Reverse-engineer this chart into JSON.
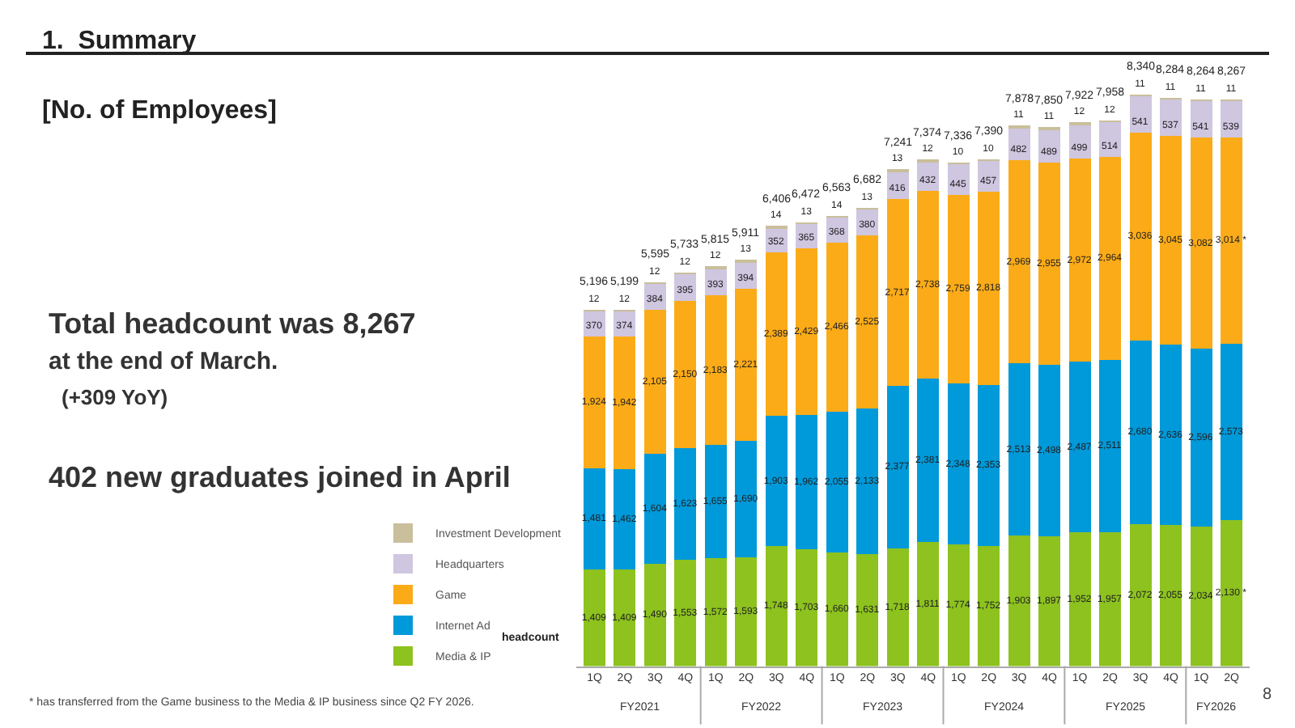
{
  "chart_data": {
    "type": "bar",
    "stacked": true,
    "title": "1.  Summary",
    "subtitle": "[No. of Employees]",
    "ylabel": "headcount",
    "legend": "left",
    "categories": [
      "1Q",
      "2Q",
      "3Q",
      "4Q",
      "1Q",
      "2Q",
      "3Q",
      "4Q",
      "1Q",
      "2Q",
      "3Q",
      "4Q",
      "1Q",
      "2Q",
      "3Q",
      "4Q",
      "1Q",
      "2Q",
      "3Q",
      "4Q",
      "1Q",
      "2Q"
    ],
    "series": [
      {
        "name": "Media & IP",
        "color": "#8dc21f",
        "values": [
          1409,
          1409,
          1490,
          1553,
          1572,
          1593,
          1748,
          1703,
          1660,
          1631,
          1718,
          1811,
          1774,
          1752,
          1903,
          1897,
          1952,
          1957,
          2072,
          2055,
          2034,
          2130
        ],
        "value_labels": [
          "1,409",
          "1,409",
          "1,490",
          "1,553",
          "1,572",
          "1,593",
          "1,748",
          "1,703",
          "1,660",
          "1,631",
          "1,718",
          "1,811",
          "1,774",
          "1,752",
          "1,903",
          "1,897",
          "1,952",
          "1,957",
          "2,072",
          "2,055",
          "2,034",
          "2,130 *"
        ]
      },
      {
        "name": "Internet Ad",
        "color": "#0099d9",
        "values": [
          1481,
          1462,
          1604,
          1623,
          1655,
          1690,
          1903,
          1962,
          2055,
          2133,
          2377,
          2381,
          2348,
          2353,
          2513,
          2498,
          2487,
          2511,
          2680,
          2636,
          2596,
          2573
        ],
        "value_labels": [
          "1,481",
          "1,462",
          "1,604",
          "1,623",
          "1,655",
          "1,690",
          "1,903",
          "1,962",
          "2,055",
          "2,133",
          "2,377",
          "2,381",
          "2,348",
          "2,353",
          "2,513",
          "2,498",
          "2,487",
          "2,511",
          "2,680",
          "2,636",
          "2,596",
          "2,573"
        ]
      },
      {
        "name": "Game",
        "color": "#fbab18",
        "values": [
          1924,
          1942,
          2105,
          2150,
          2183,
          2221,
          2389,
          2429,
          2466,
          2525,
          2717,
          2738,
          2759,
          2818,
          2969,
          2955,
          2972,
          2964,
          3036,
          3045,
          3082,
          3014
        ],
        "value_labels": [
          "1,924",
          "1,942",
          "2,105",
          "2,150",
          "2,183",
          "2,221",
          "2,389",
          "2,429",
          "2,466",
          "2,525",
          "2,717",
          "2,738",
          "2,759",
          "2,818",
          "2,969",
          "2,955",
          "2,972",
          "2,964",
          "3,036",
          "3,045",
          "3,082",
          "3,014 *"
        ]
      },
      {
        "name": "Headquarters",
        "color": "#cfc6e0",
        "values": [
          370,
          374,
          384,
          395,
          393,
          394,
          352,
          365,
          368,
          380,
          416,
          432,
          445,
          457,
          482,
          489,
          499,
          514,
          541,
          537,
          541,
          539
        ],
        "value_labels": [
          "370",
          "374",
          "384",
          "395",
          "393",
          "394",
          "352",
          "365",
          "368",
          "380",
          "416",
          "432",
          "445",
          "457",
          "482",
          "489",
          "499",
          "514",
          "541",
          "537",
          "541",
          "539"
        ]
      },
      {
        "name": "Investment Development",
        "color": "#c9bf9b",
        "values": [
          12,
          12,
          12,
          12,
          12,
          13,
          14,
          13,
          14,
          13,
          13,
          12,
          10,
          10,
          11,
          11,
          12,
          12,
          11,
          11,
          11,
          11
        ],
        "value_labels": [
          "12",
          "12",
          "12",
          "12",
          "12",
          "13",
          "14",
          "13",
          "14",
          "13",
          "13",
          "12",
          "10",
          "10",
          "11",
          "11",
          "12",
          "12",
          "11",
          "11",
          "11",
          "11"
        ]
      }
    ],
    "totals": [
      "5,196",
      "5,199",
      "5,595",
      "5,733",
      "5,815",
      "5,911",
      "6,406",
      "6,472",
      "6,563",
      "6,682",
      "7,241",
      "7,374",
      "7,336",
      "7,390",
      "7,878",
      "7,850",
      "7,922",
      "7,958",
      "8,340",
      "8,284",
      "8,264",
      "8,267"
    ],
    "annotations": [
      "Total headcount was 8,267",
      "at the end of March.",
      "(+309 YoY)",
      "402 new graduates joined in April",
      "FY2021",
      "FY2022",
      "FY2023",
      "FY2024",
      "FY2025",
      "FY2026",
      "* has transferred from the Game business to the Media & IP business since Q2 FY 2026.",
      "8"
    ]
  }
}
